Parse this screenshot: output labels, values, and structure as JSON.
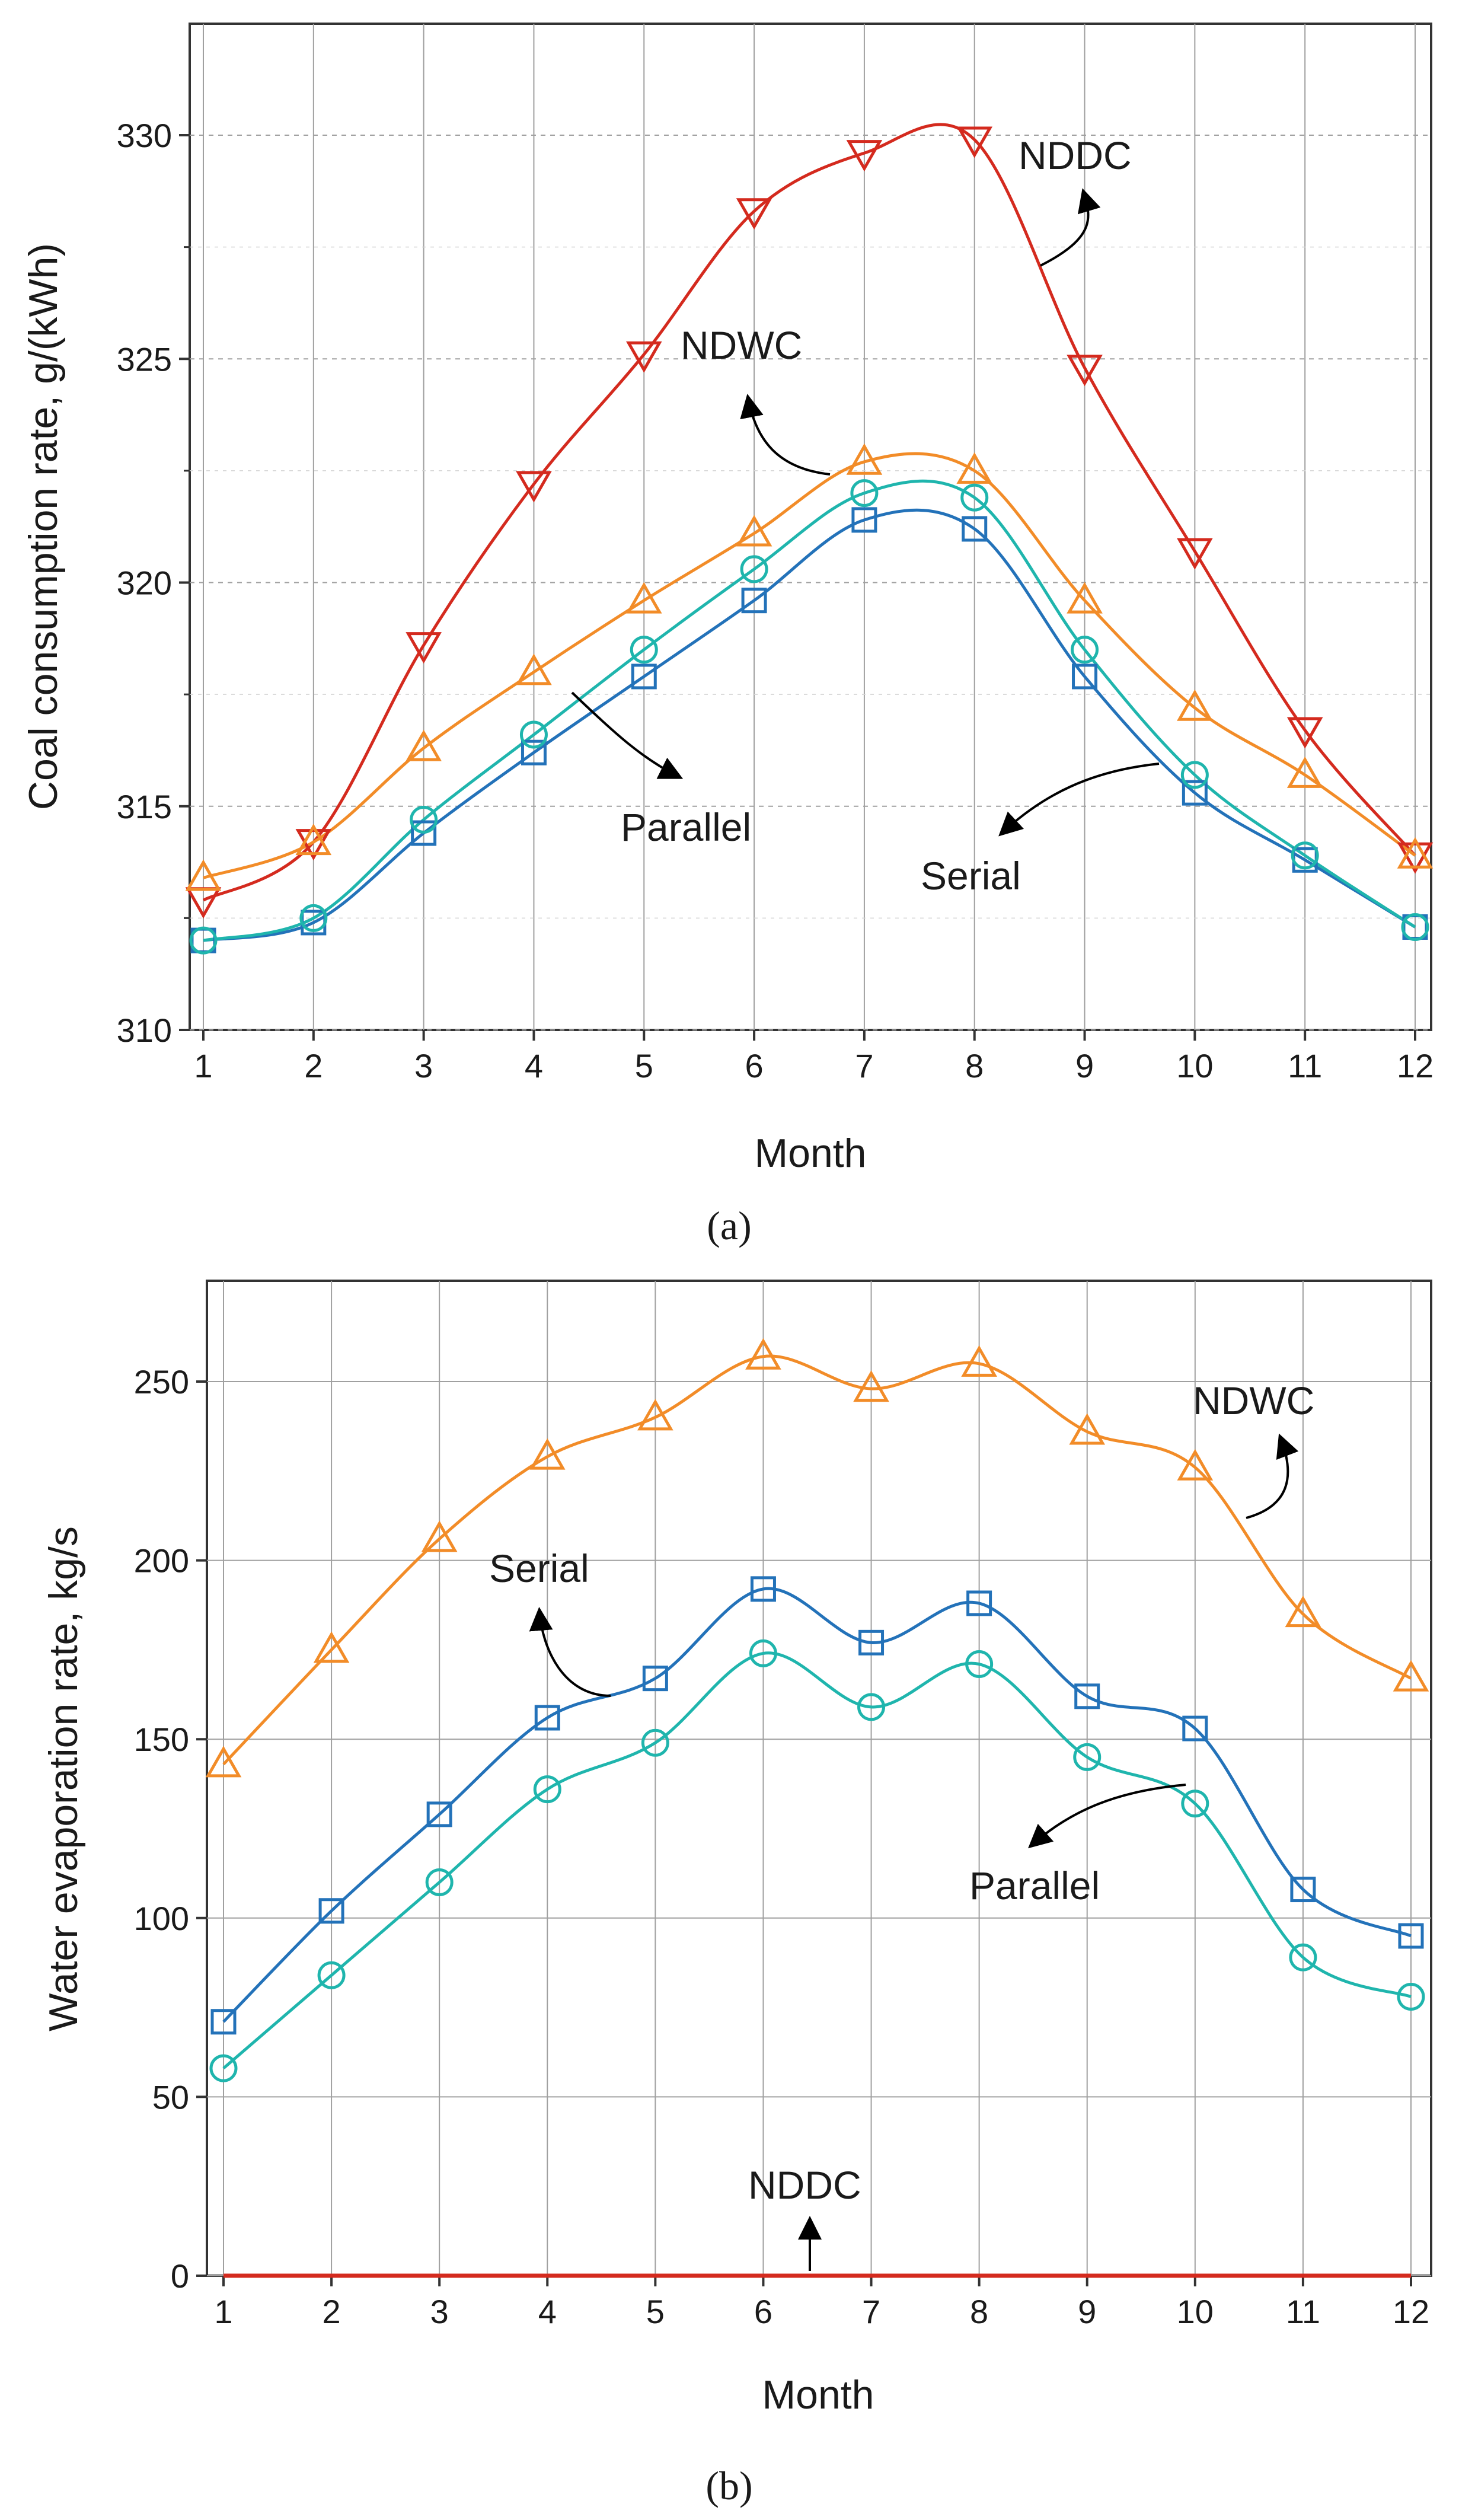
{
  "chart_data": [
    {
      "type": "line",
      "panel_label": "(a)",
      "xlabel": "Month",
      "ylabel": "Coal consumption rate, g/(kWh)",
      "x": [
        1,
        2,
        3,
        4,
        5,
        6,
        7,
        8,
        9,
        10,
        11,
        12
      ],
      "xticks": [
        "1",
        "2",
        "3",
        "4",
        "5",
        "6",
        "7",
        "8",
        "9",
        "10",
        "11",
        "12"
      ],
      "ylim": [
        310,
        332.5
      ],
      "yticks": [
        "310",
        "315",
        "320",
        "325",
        "330"
      ],
      "grid": "major and minor dashed",
      "series": [
        {
          "name": "NDDC",
          "marker": "triangle-down",
          "color": "#d42a1e",
          "values": [
            312.9,
            314.2,
            318.6,
            322.2,
            325.1,
            328.3,
            329.6,
            329.9,
            324.8,
            320.7,
            316.7,
            313.9
          ]
        },
        {
          "name": "NDWC",
          "marker": "triangle-up",
          "color": "#f28c28",
          "values": [
            313.4,
            314.2,
            316.3,
            318.0,
            319.6,
            321.1,
            322.7,
            322.5,
            319.6,
            317.2,
            315.7,
            313.9
          ]
        },
        {
          "name": "Serial",
          "marker": "square",
          "color": "#2372b9",
          "values": [
            312.0,
            312.4,
            314.4,
            316.2,
            317.9,
            319.6,
            321.4,
            321.2,
            317.9,
            315.3,
            313.8,
            312.3
          ]
        },
        {
          "name": "Parallel",
          "marker": "circle",
          "color": "#1fb5ad",
          "values": [
            312.0,
            312.5,
            314.7,
            316.6,
            318.5,
            320.3,
            322.0,
            321.9,
            318.5,
            315.7,
            313.9,
            312.3
          ]
        }
      ],
      "annotations": [
        "NDDC",
        "NDWC",
        "Parallel",
        "Serial"
      ]
    },
    {
      "type": "line",
      "panel_label": "(b)",
      "xlabel": "Month",
      "ylabel": "Water evaporation rate, kg/s",
      "x": [
        1,
        2,
        3,
        4,
        5,
        6,
        7,
        8,
        9,
        10,
        11,
        12
      ],
      "xticks": [
        "1",
        "2",
        "3",
        "4",
        "5",
        "6",
        "7",
        "8",
        "9",
        "10",
        "11",
        "12"
      ],
      "ylim": [
        0,
        275
      ],
      "yticks": [
        "0",
        "50",
        "100",
        "150",
        "200",
        "250"
      ],
      "grid": "major solid",
      "series": [
        {
          "name": "NDWC",
          "marker": "triangle-up",
          "color": "#f28c28",
          "values": [
            143,
            175,
            206,
            229,
            240,
            257,
            248,
            255,
            236,
            226,
            185,
            167
          ]
        },
        {
          "name": "Serial",
          "marker": "square",
          "color": "#2372b9",
          "values": [
            71,
            102,
            129,
            156,
            167,
            192,
            177,
            188,
            162,
            153,
            108,
            95
          ]
        },
        {
          "name": "Parallel",
          "marker": "circle",
          "color": "#1fb5ad",
          "values": [
            58,
            84,
            110,
            136,
            149,
            174,
            159,
            171,
            145,
            132,
            89,
            78
          ]
        },
        {
          "name": "NDDC",
          "marker": "none",
          "color": "#d42a1e",
          "values": [
            0,
            0,
            0,
            0,
            0,
            0,
            0,
            0,
            0,
            0,
            0,
            0
          ]
        }
      ],
      "annotations": [
        "NDWC",
        "Serial",
        "Parallel",
        "NDDC"
      ]
    }
  ]
}
